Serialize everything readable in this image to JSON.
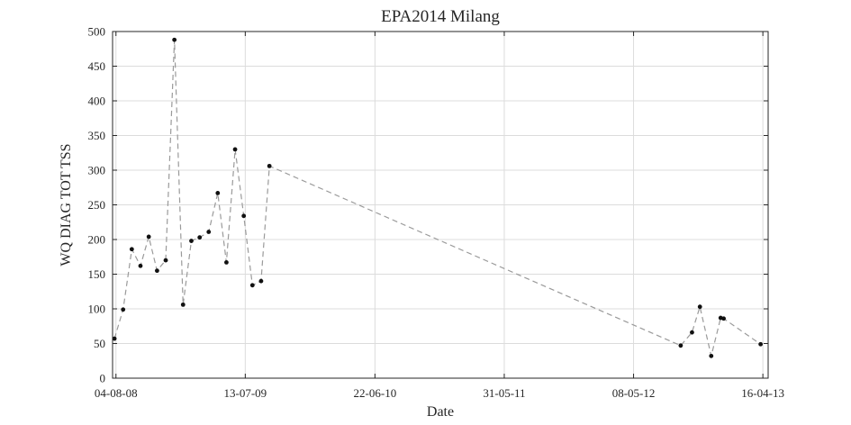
{
  "chart_data": {
    "type": "line",
    "title": "EPA2014 Milang",
    "xlabel": "Date",
    "ylabel": "WQ DIAG TOT TSS",
    "x_axis_type": "date",
    "xlim": [
      "2008-07-26",
      "2013-04-30"
    ],
    "ylim": [
      0,
      500
    ],
    "grid": true,
    "line_style": "dashed",
    "line_color": "#9a9a9a",
    "marker_color": "#111111",
    "x_ticks": [
      {
        "date": "2008-08-04",
        "label": "04-08-08"
      },
      {
        "date": "2009-07-13",
        "label": "13-07-09"
      },
      {
        "date": "2010-06-22",
        "label": "22-06-10"
      },
      {
        "date": "2011-05-31",
        "label": "31-05-11"
      },
      {
        "date": "2012-05-08",
        "label": "08-05-12"
      },
      {
        "date": "2013-04-16",
        "label": "16-04-13"
      }
    ],
    "y_ticks": [
      0,
      50,
      100,
      150,
      200,
      250,
      300,
      350,
      400,
      450,
      500
    ],
    "series": [
      {
        "points": [
          {
            "x": "2008-07-31",
            "y": 57
          },
          {
            "x": "2008-08-23",
            "y": 99
          },
          {
            "x": "2008-09-15",
            "y": 186
          },
          {
            "x": "2008-10-08",
            "y": 162
          },
          {
            "x": "2008-10-30",
            "y": 204
          },
          {
            "x": "2008-11-21",
            "y": 155
          },
          {
            "x": "2008-12-14",
            "y": 170
          },
          {
            "x": "2009-01-06",
            "y": 488
          },
          {
            "x": "2009-01-29",
            "y": 106
          },
          {
            "x": "2009-02-20",
            "y": 198
          },
          {
            "x": "2009-03-14",
            "y": 203
          },
          {
            "x": "2009-04-07",
            "y": 211
          },
          {
            "x": "2009-05-01",
            "y": 267
          },
          {
            "x": "2009-05-24",
            "y": 167
          },
          {
            "x": "2009-06-16",
            "y": 330
          },
          {
            "x": "2009-07-09",
            "y": 234
          },
          {
            "x": "2009-08-01",
            "y": 134
          },
          {
            "x": "2009-08-24",
            "y": 140
          },
          {
            "x": "2009-09-15",
            "y": 306
          },
          {
            "x": "2012-09-10",
            "y": 47
          },
          {
            "x": "2012-10-10",
            "y": 66
          },
          {
            "x": "2012-10-31",
            "y": 103
          },
          {
            "x": "2012-11-30",
            "y": 32
          },
          {
            "x": "2012-12-25",
            "y": 87
          },
          {
            "x": "2013-01-02",
            "y": 86
          },
          {
            "x": "2013-04-10",
            "y": 49
          }
        ]
      }
    ]
  }
}
